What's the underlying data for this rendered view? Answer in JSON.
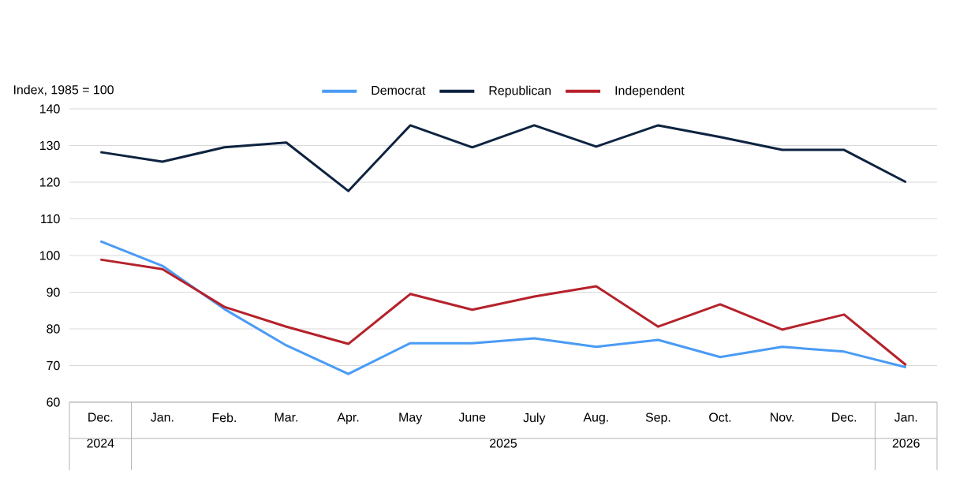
{
  "chart_data": {
    "type": "line",
    "ylabel": "Index, 1985 = 100",
    "categories": [
      "Dec.",
      "Jan.",
      "Feb.",
      "Mar.",
      "Apr.",
      "May",
      "June",
      "July",
      "Aug.",
      "Sep.",
      "Oct.",
      "Nov.",
      "Dec.",
      "Jan."
    ],
    "annotations": [
      "2024",
      "2025",
      "2026"
    ],
    "series": [
      {
        "name": "Democrat",
        "color": "#4a9bf5",
        "values": [
          103.9,
          97.2,
          85.4,
          75.5,
          67.7,
          76.1,
          76.1,
          77.4,
          75.1,
          77.0,
          72.3,
          75.1,
          73.8,
          69.5
        ]
      },
      {
        "name": "Republican",
        "color": "#0d2340",
        "values": [
          128.2,
          125.6,
          129.5,
          130.8,
          117.6,
          135.5,
          129.5,
          135.5,
          129.7,
          135.5,
          132.3,
          128.8,
          128.8,
          120.0
        ]
      },
      {
        "name": "Independent",
        "color": "#b5222b",
        "values": [
          98.9,
          96.3,
          86.0,
          80.6,
          75.9,
          89.5,
          85.2,
          88.8,
          91.6,
          80.6,
          86.7,
          79.8,
          83.9,
          70.1
        ]
      }
    ],
    "ylim": [
      60,
      140
    ],
    "yticks": [
      60,
      70,
      80,
      90,
      100,
      110,
      120,
      130,
      140
    ],
    "grid": "y",
    "legend": "top",
    "marker": "none",
    "line_style": "solid"
  }
}
